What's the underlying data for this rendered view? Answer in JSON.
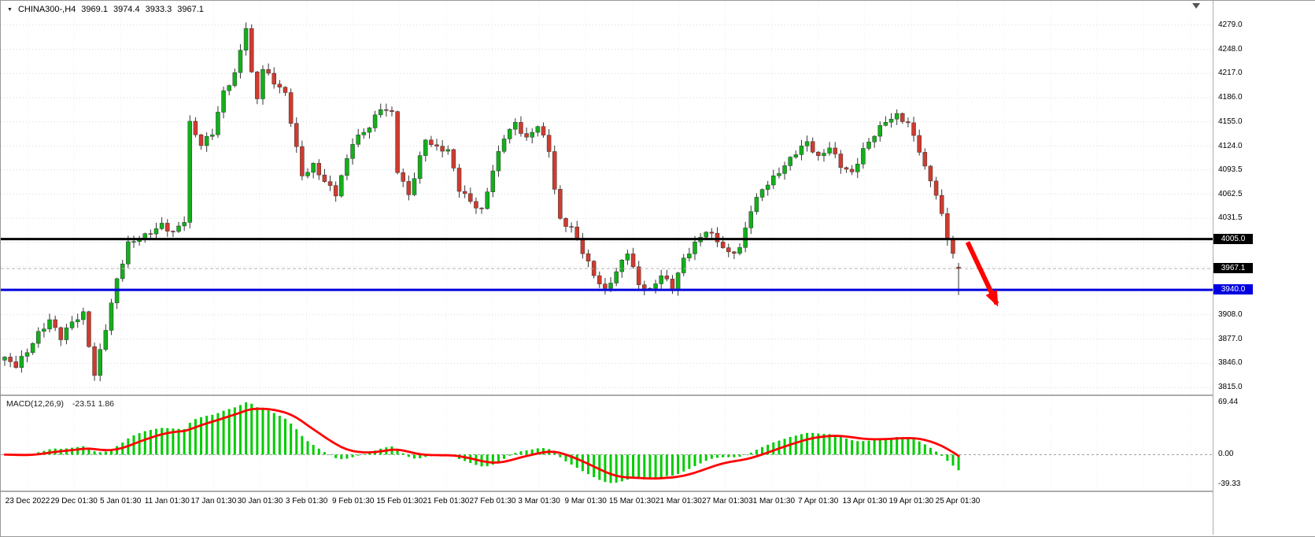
{
  "header": {
    "dropdown_icon": "▼",
    "symbol": "CHINA300-,H4",
    "open": "3969.1",
    "high": "3974.4",
    "low": "3933.3",
    "close": "3967.1"
  },
  "colors": {
    "up": "#12b01a",
    "down": "#d03b2f",
    "wick": "#333333",
    "grid": "#d8d8d8",
    "vgrid": "#ededed",
    "macd_hist": "#00cc00",
    "macd_signal": "#ff0000",
    "arrow": "#ff0000",
    "bid_line": "#b5b5b5",
    "axis_text": "#000000"
  },
  "chart_data": {
    "type": "candlestick",
    "symbol": "CHINA300-",
    "timeframe": "H4",
    "last_bar": {
      "open": 3969.1,
      "high": 3974.4,
      "low": 3933.3,
      "close": 3967.1
    },
    "price_axis": {
      "plot_max": 4310,
      "plot_min": 3806,
      "ticks": [
        4279.0,
        4248.0,
        4217.0,
        4186.0,
        4155.0,
        4124.0,
        4093.5,
        4062.5,
        4031.5,
        3908.0,
        3877.0,
        3846.0,
        3815.0
      ],
      "hidden_grid": [
        4000.5,
        3969.5,
        3938.5
      ]
    },
    "price_tags": [
      {
        "label": "4005.0",
        "price": 4005.0,
        "bg": "#000000"
      },
      {
        "label": "3967.1",
        "price": 3967.1,
        "bg": "#000000"
      },
      {
        "label": "3940.0",
        "price": 3940.0,
        "bg": "#0000e0"
      }
    ],
    "levels": [
      {
        "label": "4005.0",
        "price": 4005.0,
        "color": "#000000",
        "width": 3
      },
      {
        "label": "3940.0",
        "price": 3940.0,
        "color": "#0000e0",
        "width": 3
      }
    ],
    "bid": {
      "price": 3967.1,
      "label": "3967.1"
    },
    "time_axis": {
      "labels": [
        "23 Dec 2022",
        "29 Dec 01:30",
        "5 Jan 01:30",
        "11 Jan 01:30",
        "17 Jan 01:30",
        "30 Jan 01:30",
        "3 Feb 01:30",
        "9 Feb 01:30",
        "15 Feb 01:30",
        "21 Feb 01:30",
        "27 Feb 01:30",
        "3 Mar 01:30",
        "9 Mar 01:30",
        "15 Mar 01:30",
        "21 Mar 01:30",
        "27 Mar 01:30",
        "31 Mar 01:30",
        "7 Apr 01:30",
        "13 Apr 01:30",
        "19 Apr 01:30",
        "25 Apr 01:30"
      ]
    },
    "candles": {
      "count": 171,
      "zigzag": 3,
      "wick": 8,
      "waypoints": [
        [
          0,
          3852
        ],
        [
          2,
          3843
        ],
        [
          4,
          3861
        ],
        [
          6,
          3884
        ],
        [
          8,
          3901
        ],
        [
          10,
          3879
        ],
        [
          12,
          3899
        ],
        [
          14,
          3909
        ],
        [
          15,
          3869
        ],
        [
          16,
          3831
        ],
        [
          18,
          3891
        ],
        [
          20,
          3953
        ],
        [
          22,
          3999
        ],
        [
          25,
          4009
        ],
        [
          28,
          4023
        ],
        [
          30,
          4013
        ],
        [
          32,
          4029
        ],
        [
          33,
          4153
        ],
        [
          35,
          4126
        ],
        [
          37,
          4141
        ],
        [
          39,
          4193
        ],
        [
          41,
          4216
        ],
        [
          43,
          4277
        ],
        [
          44,
          4216
        ],
        [
          45,
          4186
        ],
        [
          46,
          4223
        ],
        [
          48,
          4206
        ],
        [
          50,
          4191
        ],
        [
          53,
          4086
        ],
        [
          55,
          4099
        ],
        [
          57,
          4079
        ],
        [
          59,
          4063
        ],
        [
          62,
          4129
        ],
        [
          65,
          4149
        ],
        [
          67,
          4173
        ],
        [
          69,
          4166
        ],
        [
          70,
          4093
        ],
        [
          72,
          4061
        ],
        [
          75,
          4133
        ],
        [
          77,
          4121
        ],
        [
          79,
          4119
        ],
        [
          81,
          4069
        ],
        [
          83,
          4053
        ],
        [
          85,
          4041
        ],
        [
          87,
          4093
        ],
        [
          89,
          4136
        ],
        [
          91,
          4153
        ],
        [
          93,
          4133
        ],
        [
          95,
          4151
        ],
        [
          97,
          4119
        ],
        [
          98,
          4069
        ],
        [
          99,
          4029
        ],
        [
          101,
          4019
        ],
        [
          103,
          3989
        ],
        [
          105,
          3959
        ],
        [
          107,
          3939
        ],
        [
          109,
          3963
        ],
        [
          111,
          3989
        ],
        [
          113,
          3946
        ],
        [
          115,
          3939
        ],
        [
          117,
          3959
        ],
        [
          119,
          3943
        ],
        [
          121,
          3979
        ],
        [
          123,
          3999
        ],
        [
          125,
          4016
        ],
        [
          127,
          4003
        ],
        [
          129,
          3986
        ],
        [
          131,
          3993
        ],
        [
          133,
          4043
        ],
        [
          135,
          4069
        ],
        [
          137,
          4083
        ],
        [
          139,
          4099
        ],
        [
          141,
          4116
        ],
        [
          143,
          4129
        ],
        [
          145,
          4109
        ],
        [
          147,
          4123
        ],
        [
          149,
          4099
        ],
        [
          151,
          4089
        ],
        [
          153,
          4119
        ],
        [
          155,
          4139
        ],
        [
          157,
          4156
        ],
        [
          159,
          4163
        ],
        [
          161,
          4153
        ],
        [
          163,
          4119
        ],
        [
          164,
          4096
        ],
        [
          166,
          4063
        ],
        [
          168,
          4006
        ],
        [
          169,
          3987
        ],
        [
          170,
          3967.1
        ]
      ]
    },
    "arrow": {
      "from_index": 171.6,
      "from_price": 4001,
      "to_index": 176.8,
      "to_price": 3922
    },
    "macd": {
      "label": "MACD(12,26,9)",
      "values": "-23.51 1.86",
      "fast": 12,
      "slow": 26,
      "signal": 9,
      "axis": {
        "max": 69.44,
        "min": -39.33
      },
      "axis_labels": [
        {
          "label": "69.44",
          "value": 69.44
        },
        {
          "label": "0.00",
          "value": 0
        },
        {
          "label": "-39.33",
          "value": -39.33
        }
      ]
    }
  }
}
